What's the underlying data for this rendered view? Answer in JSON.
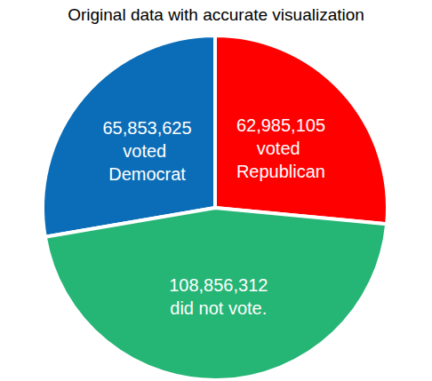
{
  "chart_data": {
    "type": "pie",
    "title": "Original data with accurate visualization",
    "categories": [
      "voted Democrat",
      "voted Republican",
      "did not vote."
    ],
    "values": [
      65853625,
      62985105,
      108856312
    ],
    "value_labels": [
      "65,853,625",
      "62,985,105",
      "108,856,312"
    ],
    "colors": [
      "#0b6db7",
      "#ff0000",
      "#25b575"
    ],
    "data_labels": true
  }
}
